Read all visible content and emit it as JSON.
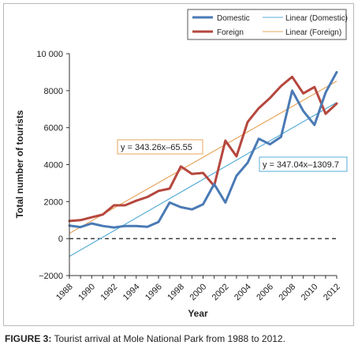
{
  "chart_data": {
    "type": "line",
    "title": "",
    "xlabel": "Year",
    "ylabel": "Total number of tourists",
    "x": [
      1988,
      1989,
      1990,
      1991,
      1992,
      1993,
      1994,
      1995,
      1996,
      1997,
      1998,
      1999,
      2000,
      2001,
      2002,
      2003,
      2004,
      2005,
      2006,
      2007,
      2008,
      2009,
      2010,
      2011,
      2012
    ],
    "xtick_labels": [
      "1988",
      "1990",
      "1992",
      "1994",
      "1996",
      "1998",
      "2000",
      "2002",
      "2004",
      "2006",
      "2008",
      "2010",
      "2012"
    ],
    "ytick_labels": [
      "−2000",
      "0",
      "2000",
      "4000",
      "6000",
      "8000",
      "10 000"
    ],
    "xlim": [
      1988,
      2012
    ],
    "ylim": [
      -2000,
      10000
    ],
    "grid": false,
    "legend_position": "top-right",
    "zero_line": "dashed",
    "series": [
      {
        "name": "Domestic",
        "color": "#4a7ab5",
        "values": [
          700,
          620,
          820,
          680,
          600,
          680,
          680,
          640,
          900,
          1950,
          1700,
          1580,
          1850,
          2950,
          1950,
          3400,
          4100,
          5400,
          5100,
          5500,
          8000,
          6900,
          6150,
          7900,
          9000
        ]
      },
      {
        "name": "Foreign",
        "color": "#b5473e",
        "values": [
          950,
          1000,
          1150,
          1300,
          1800,
          1800,
          2050,
          2250,
          2580,
          2700,
          3900,
          3500,
          3550,
          2850,
          5300,
          4450,
          6300,
          7050,
          7600,
          8250,
          8750,
          7850,
          8200,
          6750,
          7300
        ]
      }
    ],
    "trendlines": [
      {
        "name": "Linear (Domestic)",
        "color": "#5aaed8",
        "slope": 347.04,
        "intercept": -1309.7,
        "equation": "y = 347.04x–1309.7"
      },
      {
        "name": "Linear (Foreign)",
        "color": "#e8a55c",
        "slope": 343.26,
        "intercept": -65.55,
        "equation": "y = 343.26x–65.55"
      }
    ]
  },
  "caption": {
    "label": "FIGURE 3:",
    "text": " Tourist arrival at Mole National Park from 1988 to 2012."
  }
}
